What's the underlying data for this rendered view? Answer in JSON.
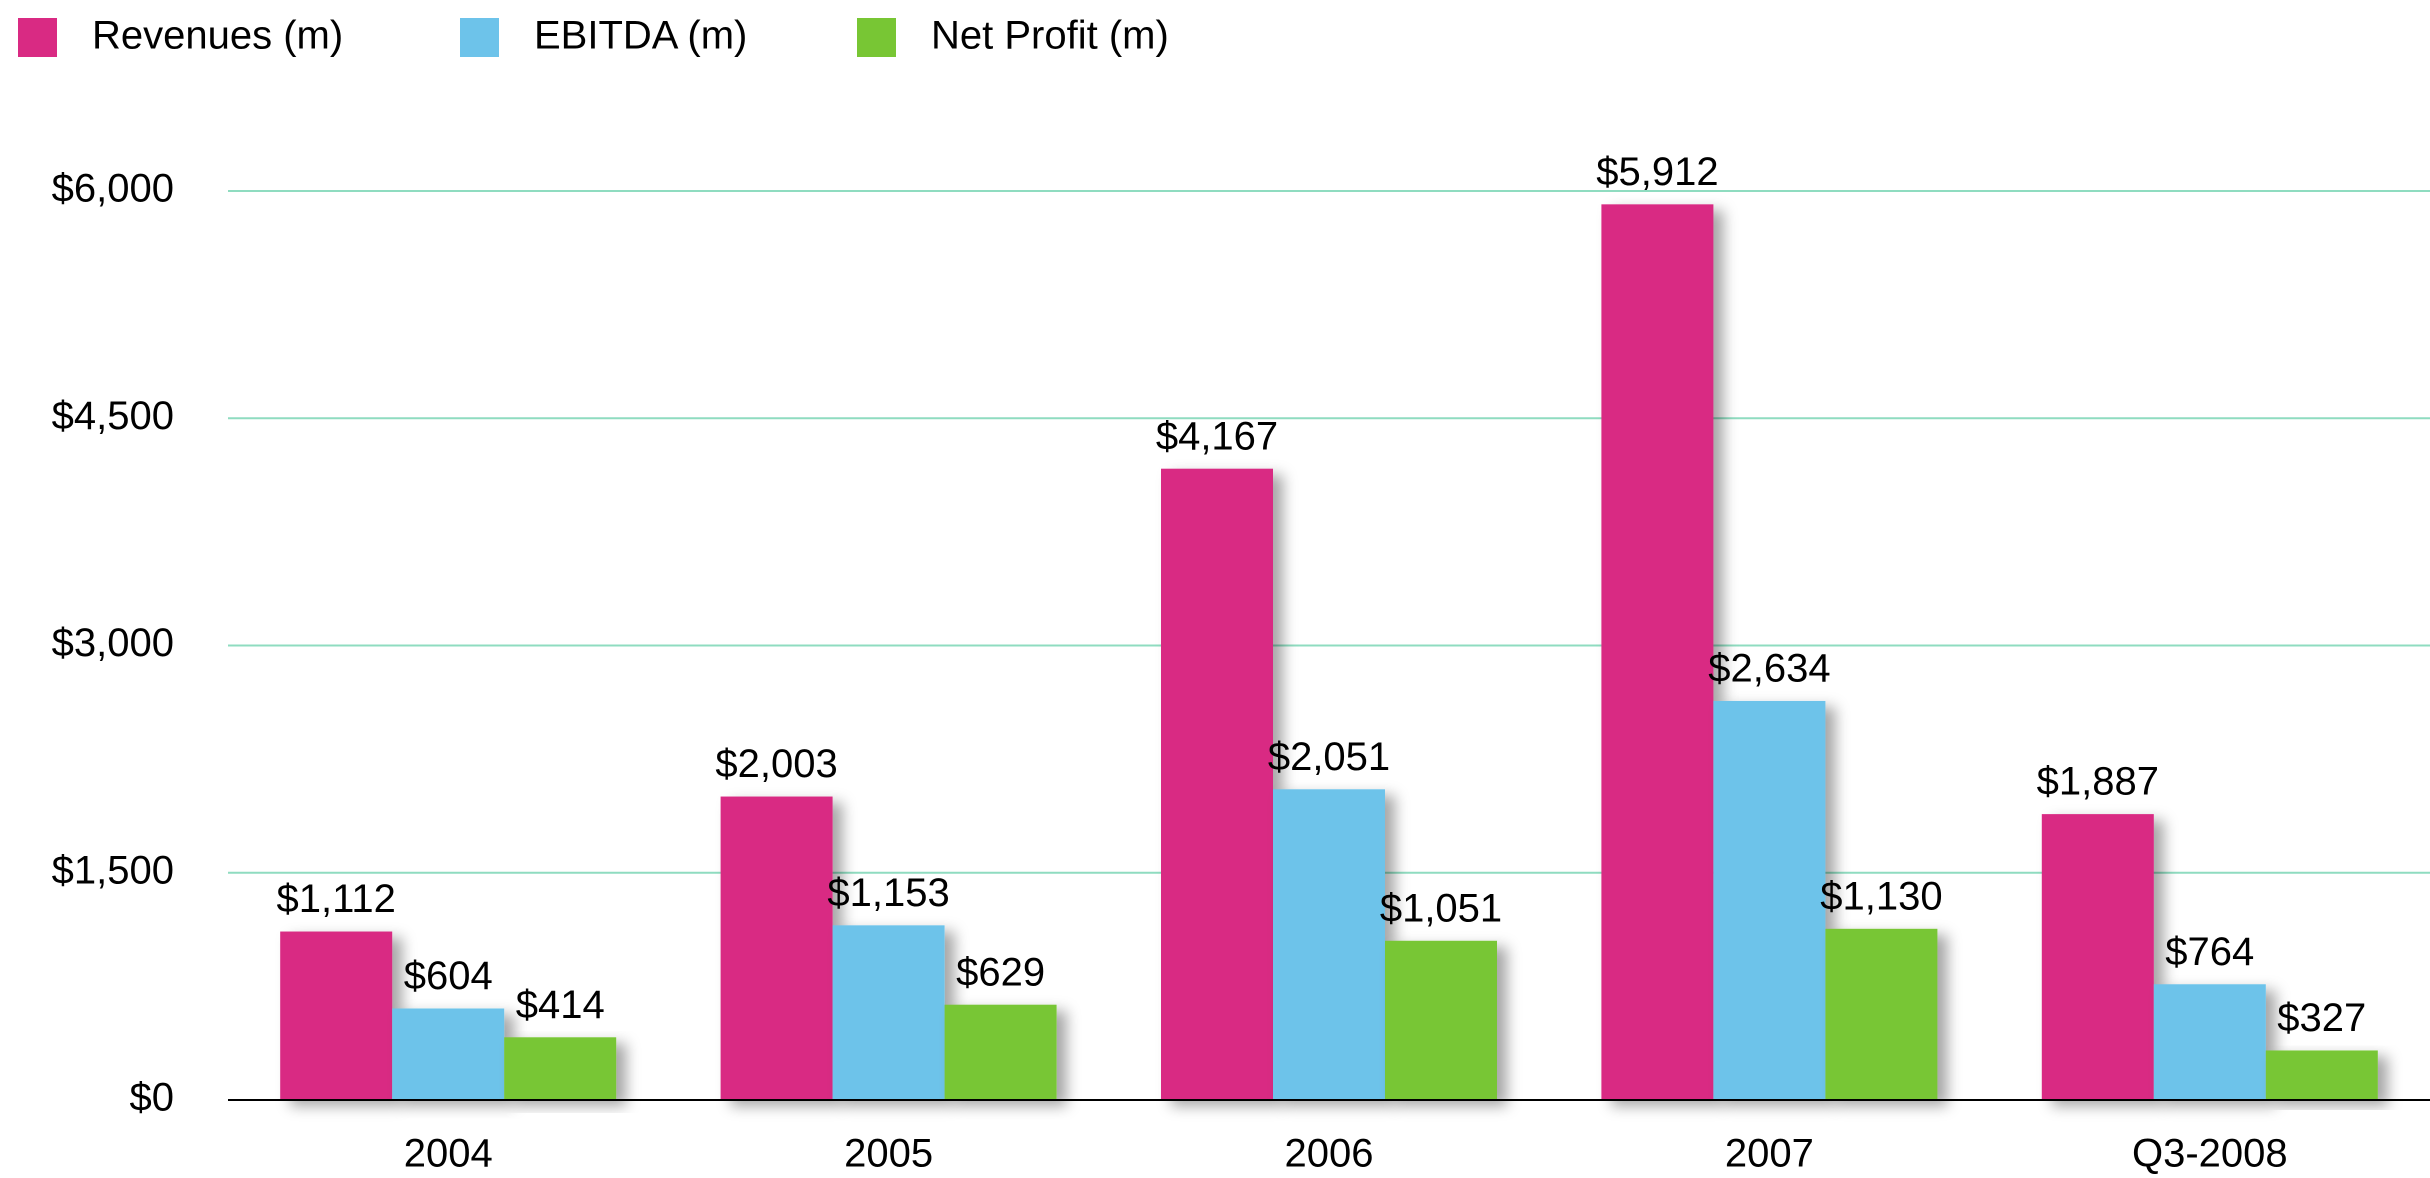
{
  "chart_data": {
    "type": "bar",
    "categories": [
      "2004",
      "2005",
      "2006",
      "2007",
      "Q3-2008"
    ],
    "series": [
      {
        "name": "Revenues (m)",
        "color": "#d92a83",
        "values": [
          1112,
          2003,
          4167,
          5912,
          1887
        ],
        "value_labels": [
          "$1,112",
          "$2,003",
          "$4,167",
          "$5,912",
          "$1,887"
        ]
      },
      {
        "name": "EBITDA (m)",
        "color": "#6dc3ea",
        "values": [
          604,
          1153,
          2051,
          2634,
          764
        ],
        "value_labels": [
          "$604",
          "$1,153",
          "$2,051",
          "$2,634",
          "$764"
        ]
      },
      {
        "name": "Net Profit (m)",
        "color": "#78c634",
        "values": [
          414,
          629,
          1051,
          1130,
          327
        ],
        "value_labels": [
          "$414",
          "$629",
          "$1,051",
          "$1,130",
          "$327"
        ]
      }
    ],
    "ylim": [
      0,
      6000
    ],
    "yticks": [
      {
        "value": 0,
        "label": "$0"
      },
      {
        "value": 1500,
        "label": "$1,500"
      },
      {
        "value": 3000,
        "label": "$3,000"
      },
      {
        "value": 4500,
        "label": "$4,500"
      },
      {
        "value": 6000,
        "label": "$6,000"
      }
    ],
    "grid": true,
    "legend": "top-left"
  }
}
